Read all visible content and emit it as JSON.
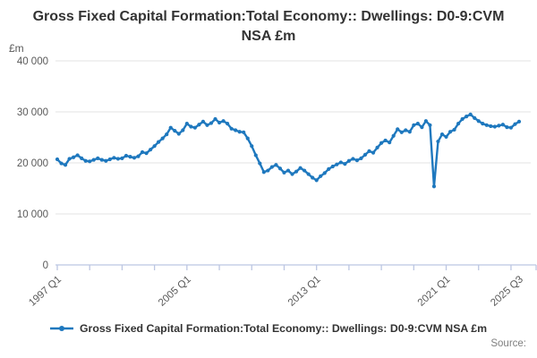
{
  "title": {
    "text": "Gross Fixed Capital Formation:Total Economy:: Dwellings: D0-9:CVM NSA £m"
  },
  "y_axis": {
    "unit": "£m",
    "tick_labels": [
      "40 000",
      "30 000",
      "20 000",
      "10 000",
      "0"
    ],
    "tick_values": [
      40000,
      30000,
      20000,
      10000,
      0
    ]
  },
  "x_axis": {
    "tick_every_quarters": 8,
    "labels": [
      {
        "text": "1997 Q1",
        "quarter_index": 0
      },
      {
        "text": "2005 Q1",
        "quarter_index": 32
      },
      {
        "text": "2013 Q1",
        "quarter_index": 64
      },
      {
        "text": "2021 Q1",
        "quarter_index": 96
      },
      {
        "text": "2025 Q3",
        "quarter_index": 114
      }
    ]
  },
  "legend": {
    "label": "Gross Fixed Capital Formation:Total Economy:: Dwellings: D0-9:CVM NSA £m"
  },
  "source_label": "Source:",
  "colors": {
    "line": "#1e78be",
    "grid": "#e3e3e3",
    "axis": "#bcc6e2",
    "axis_text": "#595959",
    "title_text": "#333333",
    "source_text": "#7f7f7f"
  },
  "chart_data": {
    "type": "line",
    "title": "Gross Fixed Capital Formation:Total Economy:: Dwellings: D0-9:CVM NSA £m",
    "ylabel": "£m",
    "ylim": [
      0,
      40000
    ],
    "frequency": "quarterly",
    "x_start": "1997 Q1",
    "x_end": "2025 Q3",
    "grid": "horizontal",
    "legend_position": "bottom",
    "series": [
      {
        "name": "Gross Fixed Capital Formation:Total Economy:: Dwellings: D0-9:CVM NSA £m",
        "values": [
          20700,
          19900,
          19600,
          20800,
          21100,
          21500,
          20900,
          20400,
          20300,
          20600,
          20900,
          20600,
          20400,
          20700,
          21000,
          20800,
          20900,
          21400,
          21200,
          21000,
          21300,
          22100,
          21900,
          22600,
          23300,
          24100,
          24800,
          25600,
          26900,
          26300,
          25700,
          26400,
          27700,
          27100,
          26900,
          27500,
          28100,
          27400,
          27800,
          28600,
          27900,
          28200,
          27700,
          26700,
          26400,
          26100,
          26000,
          24800,
          23300,
          21500,
          19900,
          18200,
          18500,
          19200,
          19600,
          18900,
          18100,
          18500,
          17800,
          18300,
          19000,
          18500,
          17800,
          17100,
          16600,
          17400,
          18000,
          18800,
          19300,
          19700,
          20100,
          19800,
          20400,
          20800,
          20500,
          20900,
          21600,
          22300,
          22000,
          23000,
          23900,
          24400,
          24000,
          25300,
          26600,
          26000,
          26400,
          26100,
          27400,
          27700,
          27000,
          28200,
          27400,
          15400,
          24200,
          25600,
          25100,
          26100,
          26500,
          27700,
          28600,
          29100,
          29500,
          28800,
          28200,
          27700,
          27400,
          27200,
          27100,
          27300,
          27500,
          27000,
          26900,
          27600,
          28100
        ]
      }
    ]
  }
}
